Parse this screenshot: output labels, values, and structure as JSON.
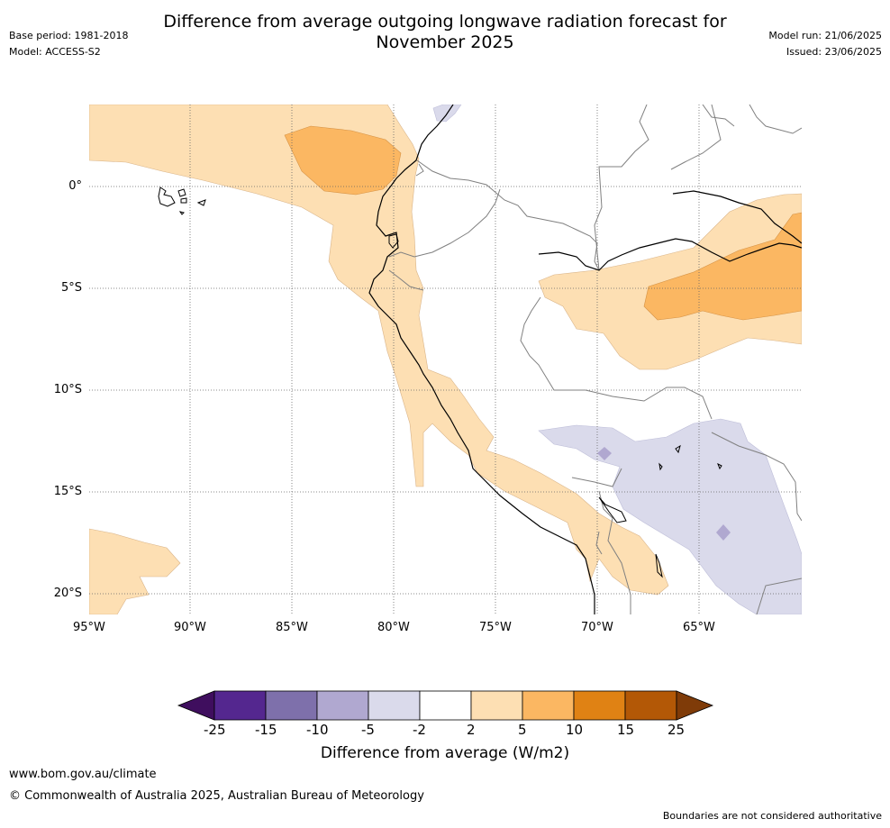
{
  "title": {
    "line1": "Difference from average outgoing longwave radiation forecast for",
    "line2": "November 2025"
  },
  "meta": {
    "base_period": "Base period: 1981-2018",
    "model": "Model: ACCESS-S2",
    "model_run": "Model run: 21/06/2025",
    "issued": "Issued: 23/06/2025"
  },
  "map": {
    "region": "Western South America (Peru / Ecuador / Bolivia / western Brazil)",
    "lat_labels": [
      "0°",
      "5°S",
      "10°S",
      "15°S",
      "20°S"
    ],
    "lon_labels": [
      "95°W",
      "90°W",
      "85°W",
      "80°W",
      "75°W",
      "70°W",
      "65°W"
    ],
    "gridlines": "dotted"
  },
  "colorbar": {
    "label": "Difference from average (W/m2)",
    "ticks": [
      "-25",
      "-15",
      "-10",
      "-5",
      "-2",
      "2",
      "5",
      "10",
      "15",
      "25"
    ],
    "colors": [
      "#3f0e5e",
      "#54278f",
      "#7e70ab",
      "#b0a8d0",
      "#dadaeb",
      "#ffffff",
      "#fddfb3",
      "#fbb762",
      "#e08214",
      "#b35806",
      "#7f3b08"
    ]
  },
  "footer": {
    "url": "www.bom.gov.au/climate",
    "copyright": "© Commonwealth of Australia 2025, Australian Bureau of Meteorology",
    "disclaimer": "Boundaries are not considered authoritative"
  }
}
